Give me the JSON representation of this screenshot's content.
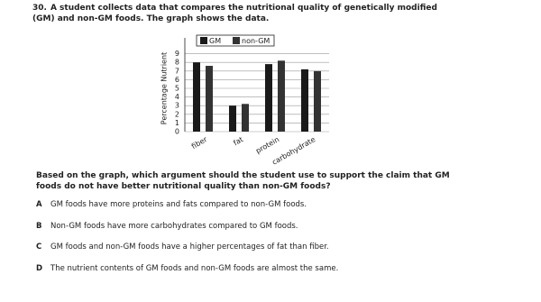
{
  "question": {
    "number": "30.",
    "text": "A student collects data that compares the nutritional quality of genetically modified (GM) and non-GM foods. The graph shows the data.",
    "prompt": "Based on the graph, which argument should the student use to support the claim that GM foods do not have better nutritional quality than non-GM foods?"
  },
  "chart_data": {
    "type": "bar",
    "y_label": "Percentage Nutrient",
    "categories": [
      "fiber",
      "fat",
      "protein",
      "carbohydrate"
    ],
    "series": [
      {
        "name": "GM",
        "color": "#1a1a1a",
        "values": [
          8,
          3,
          7.8,
          7.2
        ]
      },
      {
        "name": "non-GM",
        "color": "#333333",
        "values": [
          7.6,
          3.2,
          8.2,
          7
        ]
      }
    ],
    "ylim": [
      0,
      10
    ],
    "yticks": [
      0,
      1,
      2,
      3,
      4,
      5,
      6,
      7,
      8,
      9
    ],
    "grid": true,
    "legend": "top"
  },
  "options": [
    {
      "letter": "A",
      "text": "GM foods have more proteins and fats compared to non-GM foods."
    },
    {
      "letter": "B",
      "text": "Non-GM foods have more carbohydrates compared to GM foods."
    },
    {
      "letter": "C",
      "text": "GM foods and non-GM foods have a higher percentages of fat than fiber."
    },
    {
      "letter": "D",
      "text": "The nutrient contents of GM foods and non-GM foods are almost the same."
    }
  ]
}
